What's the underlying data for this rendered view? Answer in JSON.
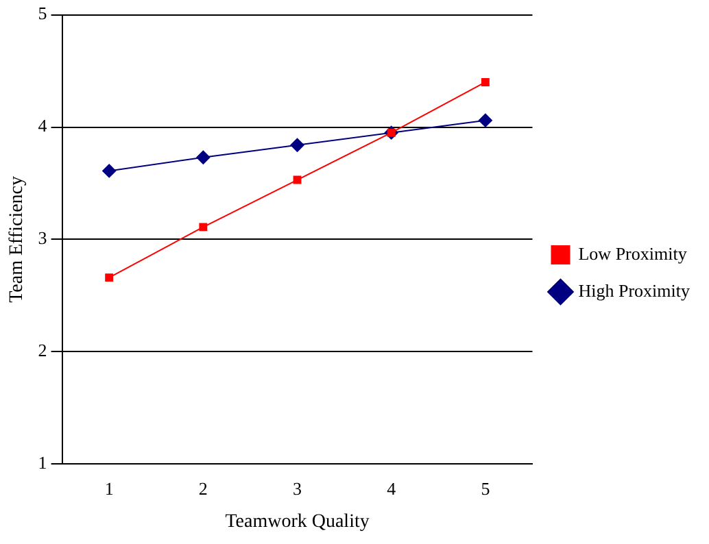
{
  "chart_data": {
    "type": "line",
    "xlabel": "Teamwork Quality",
    "ylabel": "Team Efficiency",
    "categories": [
      "1",
      "2",
      "3",
      "4",
      "5"
    ],
    "series": [
      {
        "name": "High Proximity",
        "color": "#000080",
        "marker": "diamond",
        "values": [
          3.61,
          3.73,
          3.84,
          3.95,
          4.06
        ]
      },
      {
        "name": "Low Proximity",
        "color": "#ff0000",
        "marker": "square",
        "values": [
          2.66,
          3.11,
          3.53,
          3.95,
          4.4
        ]
      }
    ],
    "ylim": [
      1,
      5
    ],
    "yticks": [
      1,
      2,
      3,
      4,
      5
    ],
    "grid": "y",
    "legend": "right"
  }
}
